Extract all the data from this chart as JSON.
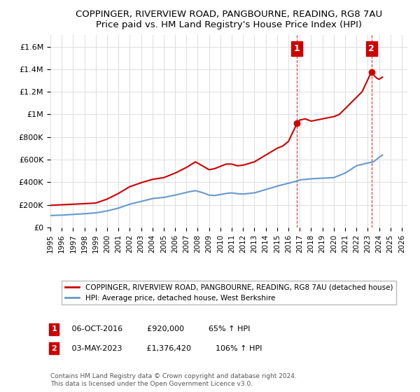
{
  "title": "COPPINGER, RIVERVIEW ROAD, PANGBOURNE, READING, RG8 7AU",
  "subtitle": "Price paid vs. HM Land Registry's House Price Index (HPI)",
  "ylabel": "",
  "xlabel": "",
  "ylim": [
    0,
    1700000
  ],
  "xlim_start": 1995.0,
  "xlim_end": 2026.5,
  "yticks": [
    0,
    200000,
    400000,
    600000,
    800000,
    1000000,
    1200000,
    1400000,
    1600000
  ],
  "ytick_labels": [
    "£0",
    "£200K",
    "£400K",
    "£600K",
    "£800K",
    "£1M",
    "£1.2M",
    "£1.4M",
    "£1.6M"
  ],
  "xtick_years": [
    1995,
    1996,
    1997,
    1998,
    1999,
    2000,
    2001,
    2002,
    2003,
    2004,
    2005,
    2006,
    2007,
    2008,
    2009,
    2010,
    2011,
    2012,
    2013,
    2014,
    2015,
    2016,
    2017,
    2018,
    2019,
    2020,
    2021,
    2022,
    2023,
    2024,
    2025,
    2026
  ],
  "sale1_x": 2016.76,
  "sale1_y": 920000,
  "sale1_label": "1",
  "sale1_date": "06-OCT-2016",
  "sale1_price": "£920,000",
  "sale1_hpi": "65% ↑ HPI",
  "sale2_x": 2023.33,
  "sale2_y": 1376420,
  "sale2_label": "2",
  "sale2_date": "03-MAY-2023",
  "sale2_price": "£1,376,420",
  "sale2_hpi": "106% ↑ HPI",
  "red_line_color": "#cc0000",
  "blue_line_color": "#6699cc",
  "grid_color": "#dddddd",
  "background_color": "#ffffff",
  "vline_color": "#cc0000",
  "marker_box_color": "#cc0000",
  "legend_label_red": "COPPINGER, RIVERVIEW ROAD, PANGBOURNE, READING, RG8 7AU (detached house)",
  "legend_label_blue": "HPI: Average price, detached house, West Berkshire",
  "footnote": "Contains HM Land Registry data © Crown copyright and database right 2024.\nThis data is licensed under the Open Government Licence v3.0."
}
